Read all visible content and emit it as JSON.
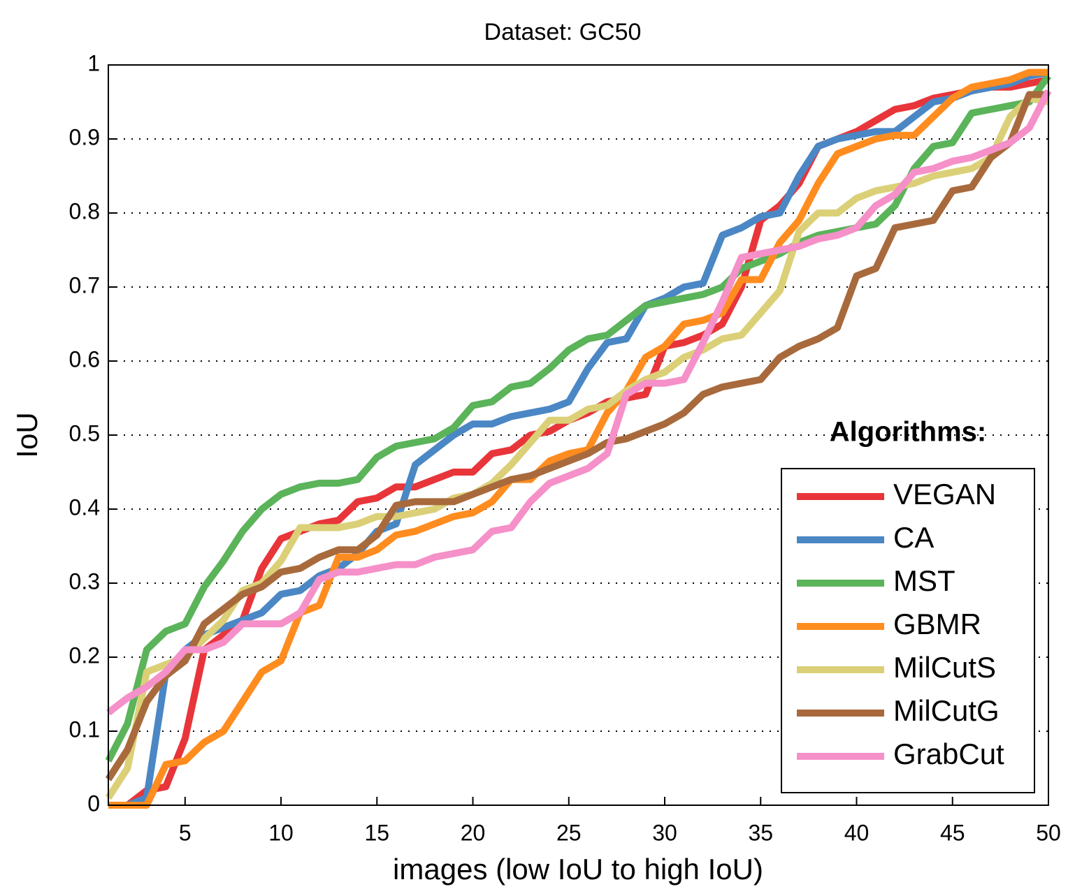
{
  "chart_data": {
    "type": "line",
    "title": "Dataset: GC50",
    "xlabel": "images (low IoU to high IoU)",
    "ylabel": "IoU",
    "legend_title": "Algorithms:",
    "legend": "lower right",
    "grid": true,
    "xlim": [
      1,
      50
    ],
    "xticks": [
      5,
      10,
      15,
      20,
      25,
      30,
      35,
      40,
      45,
      50
    ],
    "ylim": [
      0,
      1
    ],
    "yticks": [
      0,
      0.1,
      0.2,
      0.3,
      0.4,
      0.5,
      0.6,
      0.7,
      0.8,
      0.9,
      1
    ],
    "x": [
      1,
      2,
      3,
      4,
      5,
      6,
      7,
      8,
      9,
      10,
      11,
      12,
      13,
      14,
      15,
      16,
      17,
      18,
      19,
      20,
      21,
      22,
      23,
      24,
      25,
      26,
      27,
      28,
      29,
      30,
      31,
      32,
      33,
      34,
      35,
      36,
      37,
      38,
      39,
      40,
      41,
      42,
      43,
      44,
      45,
      46,
      47,
      48,
      49,
      50
    ],
    "series": [
      {
        "name": "VEGAN",
        "color": "#e8353a",
        "values": [
          0,
          0,
          0.02,
          0.025,
          0.09,
          0.21,
          0.23,
          0.25,
          0.32,
          0.36,
          0.37,
          0.38,
          0.385,
          0.41,
          0.415,
          0.43,
          0.43,
          0.44,
          0.45,
          0.45,
          0.475,
          0.48,
          0.5,
          0.505,
          0.52,
          0.53,
          0.545,
          0.55,
          0.555,
          0.62,
          0.625,
          0.635,
          0.65,
          0.7,
          0.79,
          0.81,
          0.84,
          0.89,
          0.9,
          0.91,
          0.925,
          0.94,
          0.945,
          0.955,
          0.96,
          0.965,
          0.97,
          0.97,
          0.975,
          0.98
        ]
      },
      {
        "name": "CA",
        "color": "#4a87c4",
        "values": [
          0,
          0,
          0.01,
          0.18,
          0.21,
          0.23,
          0.24,
          0.25,
          0.26,
          0.285,
          0.29,
          0.31,
          0.32,
          0.34,
          0.37,
          0.38,
          0.46,
          0.48,
          0.5,
          0.515,
          0.515,
          0.525,
          0.53,
          0.535,
          0.545,
          0.59,
          0.625,
          0.63,
          0.675,
          0.685,
          0.7,
          0.705,
          0.77,
          0.78,
          0.795,
          0.8,
          0.85,
          0.89,
          0.9,
          0.905,
          0.91,
          0.91,
          0.93,
          0.95,
          0.955,
          0.965,
          0.97,
          0.975,
          0.985,
          0.99
        ]
      },
      {
        "name": "MST",
        "color": "#5bb35a",
        "values": [
          0.06,
          0.11,
          0.21,
          0.235,
          0.245,
          0.295,
          0.33,
          0.37,
          0.4,
          0.42,
          0.43,
          0.435,
          0.435,
          0.44,
          0.47,
          0.485,
          0.49,
          0.495,
          0.51,
          0.54,
          0.545,
          0.565,
          0.57,
          0.59,
          0.615,
          0.63,
          0.635,
          0.655,
          0.675,
          0.68,
          0.685,
          0.69,
          0.7,
          0.725,
          0.735,
          0.745,
          0.76,
          0.77,
          0.775,
          0.78,
          0.785,
          0.81,
          0.86,
          0.89,
          0.895,
          0.935,
          0.94,
          0.945,
          0.95,
          0.985
        ]
      },
      {
        "name": "GBMR",
        "color": "#ff8c1f",
        "values": [
          0,
          0,
          0,
          0.055,
          0.06,
          0.085,
          0.1,
          0.14,
          0.18,
          0.195,
          0.26,
          0.27,
          0.335,
          0.335,
          0.345,
          0.365,
          0.37,
          0.38,
          0.39,
          0.395,
          0.41,
          0.44,
          0.44,
          0.465,
          0.475,
          0.48,
          0.53,
          0.56,
          0.605,
          0.62,
          0.65,
          0.655,
          0.665,
          0.71,
          0.71,
          0.76,
          0.79,
          0.84,
          0.88,
          0.89,
          0.9,
          0.905,
          0.905,
          0.93,
          0.955,
          0.97,
          0.975,
          0.98,
          0.99,
          0.99
        ]
      },
      {
        "name": "MilCutS",
        "color": "#dbd077",
        "values": [
          0.01,
          0.05,
          0.18,
          0.19,
          0.2,
          0.225,
          0.25,
          0.29,
          0.3,
          0.33,
          0.375,
          0.375,
          0.375,
          0.38,
          0.39,
          0.39,
          0.395,
          0.4,
          0.415,
          0.42,
          0.435,
          0.46,
          0.49,
          0.52,
          0.52,
          0.535,
          0.54,
          0.56,
          0.575,
          0.585,
          0.605,
          0.615,
          0.63,
          0.635,
          0.665,
          0.695,
          0.775,
          0.8,
          0.8,
          0.82,
          0.83,
          0.835,
          0.84,
          0.85,
          0.855,
          0.86,
          0.875,
          0.93,
          0.955,
          0.95
        ]
      },
      {
        "name": "MilCutG",
        "color": "#a86a3c",
        "values": [
          0.035,
          0.075,
          0.14,
          0.175,
          0.195,
          0.245,
          0.265,
          0.285,
          0.295,
          0.315,
          0.32,
          0.335,
          0.345,
          0.345,
          0.365,
          0.405,
          0.41,
          0.41,
          0.41,
          0.42,
          0.43,
          0.44,
          0.445,
          0.455,
          0.465,
          0.475,
          0.49,
          0.495,
          0.505,
          0.515,
          0.53,
          0.555,
          0.565,
          0.57,
          0.575,
          0.605,
          0.62,
          0.63,
          0.645,
          0.715,
          0.725,
          0.78,
          0.785,
          0.79,
          0.83,
          0.835,
          0.875,
          0.895,
          0.96,
          0.96
        ]
      },
      {
        "name": "GrabCut",
        "color": "#f590c9",
        "values": [
          0.125,
          0.145,
          0.16,
          0.18,
          0.21,
          0.21,
          0.22,
          0.245,
          0.245,
          0.245,
          0.26,
          0.305,
          0.315,
          0.315,
          0.32,
          0.325,
          0.325,
          0.335,
          0.34,
          0.345,
          0.37,
          0.375,
          0.41,
          0.435,
          0.445,
          0.455,
          0.475,
          0.555,
          0.57,
          0.57,
          0.575,
          0.625,
          0.68,
          0.74,
          0.745,
          0.75,
          0.755,
          0.765,
          0.77,
          0.78,
          0.81,
          0.825,
          0.855,
          0.86,
          0.87,
          0.875,
          0.885,
          0.895,
          0.915,
          0.965
        ]
      }
    ]
  }
}
